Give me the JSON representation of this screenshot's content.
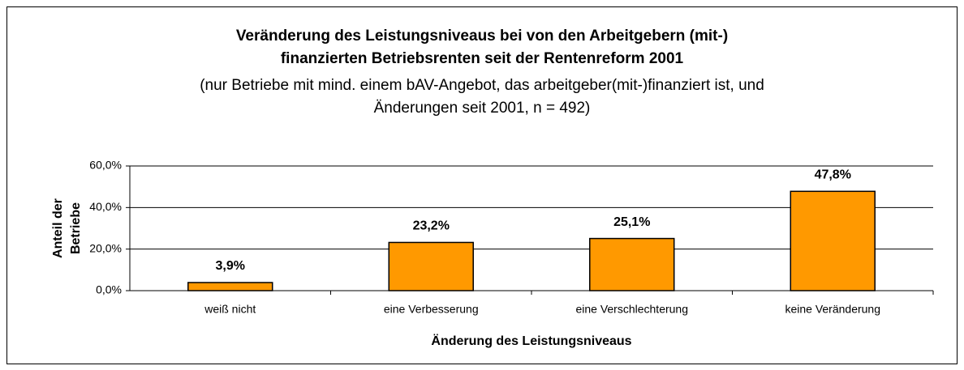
{
  "chart_data": {
    "type": "bar",
    "title_lines": [
      "Veränderung des Leistungsniveaus bei  von den Arbeitgebern (mit-)",
      "finanzierten Betriebsrenten seit der Rentenreform 2001"
    ],
    "subtitle_lines": [
      "(nur Betriebe mit mind. einem bAV-Angebot, das arbeitgeber(mit-)finanziert ist, und",
      "Änderungen seit 2001, n = 492)"
    ],
    "ylabel_lines": [
      "Anteil der",
      "Betriebe"
    ],
    "xlabel": "Änderung des Leistungsniveaus",
    "categories": [
      "weiß nicht",
      "eine Verbesserung",
      "eine Verschlechterung",
      "keine Veränderung"
    ],
    "values": [
      3.9,
      23.2,
      25.1,
      47.8
    ],
    "value_labels": [
      "3,9%",
      "23,2%",
      "25,1%",
      "47,8%"
    ],
    "color": "#ff9900",
    "ylim": [
      0,
      60
    ],
    "yticks": [
      {
        "value": 0,
        "label": "0,0%"
      },
      {
        "value": 20,
        "label": "20,0%"
      },
      {
        "value": 40,
        "label": "40,0%"
      },
      {
        "value": 60,
        "label": "60,0%"
      }
    ],
    "grid": true
  }
}
